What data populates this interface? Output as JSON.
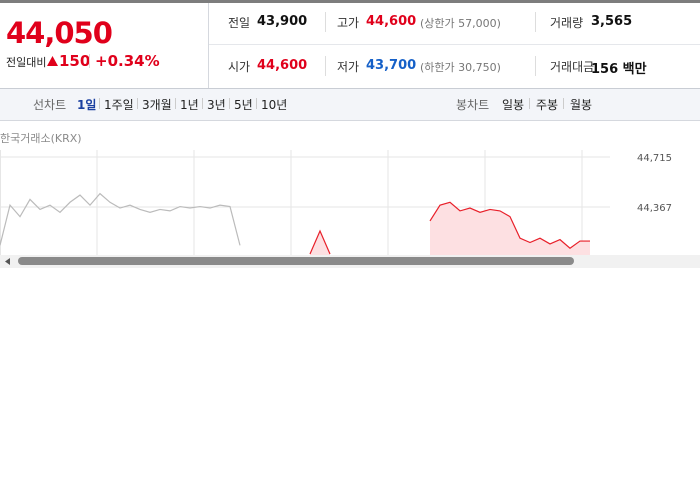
{
  "price": {
    "current": "44,050",
    "change_label": "전일대비",
    "change": "150",
    "change_rate": "+0.34%"
  },
  "stats": [
    {
      "label": "전일",
      "value": "43,900",
      "color": "#111"
    },
    {
      "label": "고가",
      "value": "44,600",
      "note": "(상한가 57,000)",
      "color": "#e0001b"
    },
    {
      "label": "거래량",
      "value": "3,565",
      "color": "#111"
    },
    {
      "label": "시가",
      "value": "44,600",
      "color": "#e0001b"
    },
    {
      "label": "저가",
      "value": "43,700",
      "note": "(하한가 30,750)",
      "color": "#1560c8"
    },
    {
      "label": "거래대금",
      "value": "156 백만",
      "color": "#111"
    }
  ],
  "toolbar": {
    "line_chart": "선차트",
    "periods": [
      "1일",
      "1주일",
      "3개월",
      "1년",
      "3년",
      "5년",
      "10년"
    ],
    "active_period": 0,
    "candle_chart": "봉차트",
    "candle_periods": [
      "일봉",
      "주봉",
      "월봉"
    ]
  },
  "chart_data": {
    "type": "line",
    "source": "한국거래소(KRX)",
    "ylim": [
      44033,
      44729
    ],
    "yticks": [
      {
        "value": 44715,
        "label": "44,715"
      },
      {
        "value": 44367,
        "label": "44,367"
      }
    ],
    "grid": true,
    "series": [
      {
        "name": "previous",
        "color": "#bbbbbb",
        "values": [
          44100,
          44380,
          44300,
          44420,
          44350,
          44380,
          44330,
          44400,
          44450,
          44380,
          44460,
          44400,
          44360,
          44380,
          44350,
          44330,
          44350,
          44340,
          44370,
          44360,
          44370,
          44360,
          44380,
          44370,
          44100,
          null,
          null,
          null,
          null,
          null,
          null,
          null,
          null,
          null,
          null,
          null,
          null,
          null,
          null,
          null,
          null,
          null,
          null,
          null,
          null,
          null,
          null,
          null,
          null,
          null,
          null,
          null,
          null,
          null,
          null,
          null,
          null,
          null,
          null,
          null
        ]
      },
      {
        "name": "today",
        "color": "#e8202a",
        "fill": "#fde0e2",
        "values": [
          null,
          null,
          null,
          null,
          null,
          null,
          null,
          null,
          null,
          null,
          null,
          null,
          null,
          null,
          null,
          null,
          null,
          null,
          null,
          null,
          null,
          null,
          null,
          null,
          null,
          null,
          null,
          null,
          null,
          null,
          null,
          44040,
          44200,
          44040,
          null,
          null,
          null,
          null,
          null,
          null,
          null,
          null,
          null,
          44270,
          44380,
          44400,
          44340,
          44360,
          44330,
          44350,
          44340,
          44300,
          44150,
          44120,
          44150,
          44110,
          44140,
          44080,
          44130,
          44130
        ]
      }
    ]
  }
}
